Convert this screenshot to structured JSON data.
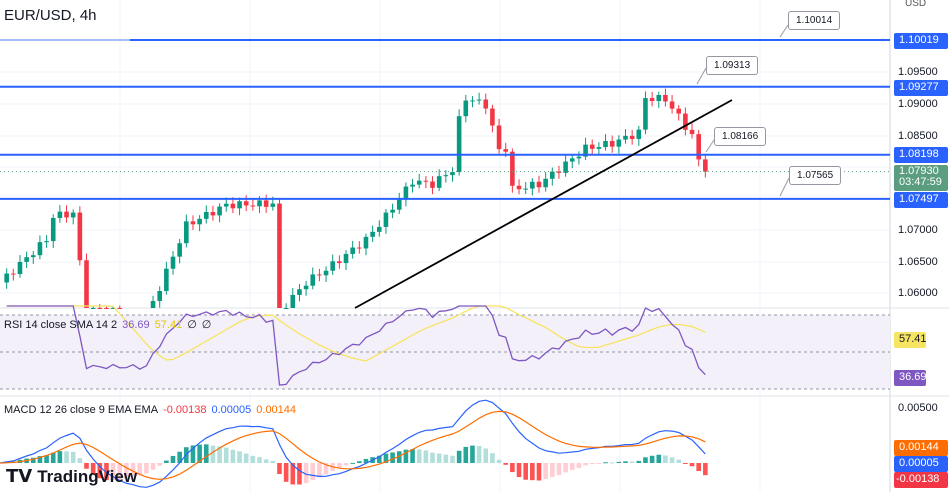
{
  "header": {
    "title": "EUR/USD, 4h",
    "currency": "USD"
  },
  "colors": {
    "level": "#2962ff",
    "up": "#089981",
    "down": "#f23645",
    "rsi": "#7e57c2",
    "rsi_sma": "#f7e463",
    "macd": "#2962ff",
    "signal": "#ff6d00"
  },
  "price_axis": {
    "ticks": [
      "1.09500",
      "1.09000",
      "1.08500",
      "1.07000",
      "1.06500",
      "1.06000"
    ],
    "levels": [
      "1.10019",
      "1.09277",
      "1.08198",
      "1.07497"
    ],
    "last_price": "1.07930",
    "countdown": "03:47:59"
  },
  "callouts": [
    "1.10014",
    "1.09313",
    "1.08166",
    "1.07565"
  ],
  "rsi": {
    "label": "RSI 14 close SMA 14 2",
    "value": "36.69",
    "sma": "57.41",
    "extra1": "∅",
    "extra2": "∅",
    "axis_value": "57.41",
    "axis_rsi": "36.69"
  },
  "macd": {
    "label": "MACD 12 26 close 9 EMA EMA",
    "hist": "-0.00138",
    "macd": "0.00005",
    "signal": "0.00144",
    "axis_tick": "0.00500"
  },
  "logo": "TradingView",
  "chart_data": {
    "type": "candlestick",
    "symbol": "EUR/USD",
    "timeframe": "4h",
    "keypoints": [
      [
        0,
        1.0617
      ],
      [
        7,
        1.0685
      ],
      [
        8,
        1.0722
      ],
      [
        11,
        1.0727
      ],
      [
        13,
        1.057
      ],
      [
        22,
        1.056
      ],
      [
        28,
        1.0708
      ],
      [
        34,
        1.074
      ],
      [
        41,
        1.0742
      ],
      [
        42,
        1.057
      ],
      [
        46,
        1.0617
      ],
      [
        50,
        1.0645
      ],
      [
        55,
        1.0685
      ],
      [
        58,
        1.0722
      ],
      [
        62,
        1.0778
      ],
      [
        65,
        1.0773
      ],
      [
        68,
        1.0796
      ],
      [
        69,
        1.0875
      ],
      [
        70,
        1.091
      ],
      [
        73,
        1.0899
      ],
      [
        75,
        1.0827
      ],
      [
        76,
        1.083
      ],
      [
        77,
        1.0765
      ],
      [
        81,
        1.0773
      ],
      [
        85,
        1.0805
      ],
      [
        88,
        1.083
      ],
      [
        92,
        1.0838
      ],
      [
        96,
        1.0855
      ],
      [
        97,
        1.091
      ],
      [
        100,
        1.0908
      ],
      [
        102,
        1.088
      ],
      [
        104,
        1.085
      ],
      [
        105,
        1.081
      ],
      [
        106,
        1.0793
      ]
    ],
    "levels": [
      1.10019,
      1.09277,
      1.08198,
      1.07497
    ],
    "last": 1.0793
  }
}
